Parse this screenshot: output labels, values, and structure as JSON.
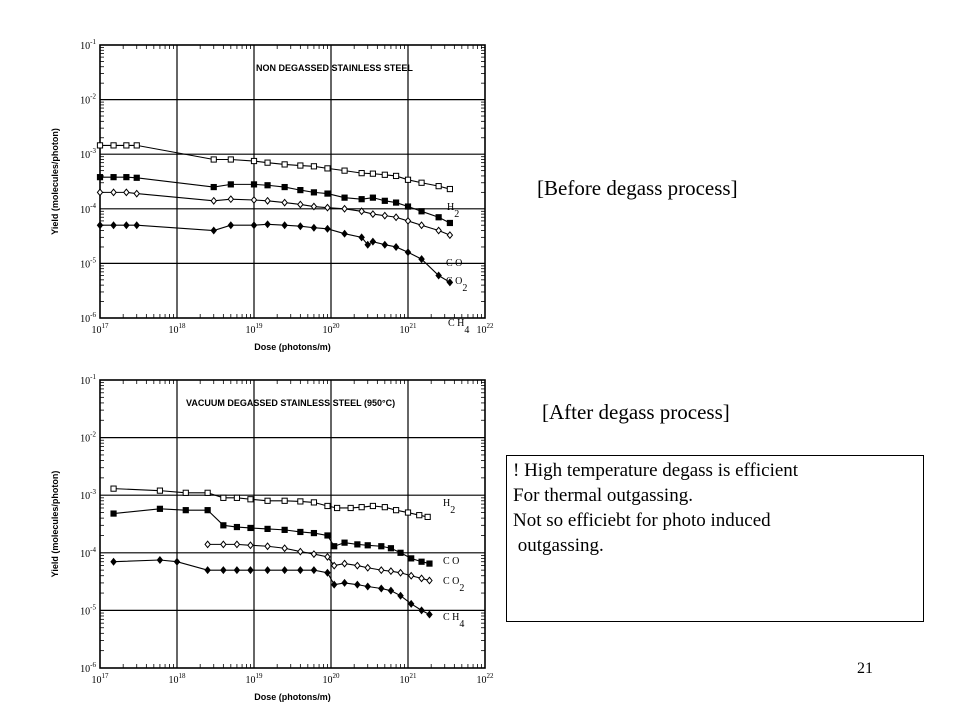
{
  "labels": {
    "before": "[Before degass process]",
    "after": "[After degass process]",
    "page_number": "21"
  },
  "notes": [
    "! High temperature degass is efficient",
    "For thermal outgassing.",
    "Not so efficiebt for photo induced",
    " outgassing."
  ],
  "chart_data": [
    {
      "type": "line",
      "title": "NON DEGASSED STAINLESS STEEL",
      "xlabel": "Dose (photons/m)",
      "ylabel": "Yield (molecules/photon)",
      "xscale": "log",
      "yscale": "log",
      "xlim": [
        1e+17,
        1e+22
      ],
      "ylim": [
        1e-06,
        0.1
      ],
      "x_ticks": [
        "10^17",
        "10^18",
        "10^19",
        "10^20",
        "10^21",
        "10^22"
      ],
      "y_ticks": [
        "10^-1",
        "10^-2",
        "10^-3",
        "10^-4",
        "10^-5",
        "10^-6"
      ],
      "grid": true,
      "series": [
        {
          "name": "H2",
          "marker": "square-open",
          "x": [
            1e+17,
            1.5e+17,
            2.2e+17,
            3e+17,
            3e+18,
            5e+18,
            1e+19,
            1.5e+19,
            2.5e+19,
            4e+19,
            6e+19,
            9e+19,
            1.5e+20,
            2.5e+20,
            3.5e+20,
            5e+20,
            7e+20,
            1e+21,
            1.5e+21,
            2.5e+21,
            3.5e+21
          ],
          "y": [
            0.00145,
            0.00145,
            0.00145,
            0.00145,
            0.0008,
            0.0008,
            0.00075,
            0.0007,
            0.00065,
            0.00062,
            0.0006,
            0.00055,
            0.0005,
            0.00045,
            0.00044,
            0.00042,
            0.0004,
            0.00034,
            0.0003,
            0.00026,
            0.00023
          ]
        },
        {
          "name": "CO",
          "marker": "square-filled",
          "x": [
            1e+17,
            1.5e+17,
            2.2e+17,
            3e+17,
            3e+18,
            5e+18,
            1e+19,
            1.5e+19,
            2.5e+19,
            4e+19,
            6e+19,
            9e+19,
            1.5e+20,
            2.5e+20,
            3.5e+20,
            5e+20,
            7e+20,
            1e+21,
            1.5e+21,
            2.5e+21,
            3.5e+21
          ],
          "y": [
            0.00038,
            0.00038,
            0.00038,
            0.00037,
            0.00025,
            0.00028,
            0.00028,
            0.00027,
            0.00025,
            0.00022,
            0.0002,
            0.00019,
            0.00016,
            0.00015,
            0.00016,
            0.00014,
            0.00013,
            0.00011,
            9e-05,
            7e-05,
            5.5e-05
          ]
        },
        {
          "name": "CO2",
          "marker": "diamond-open",
          "x": [
            1e+17,
            1.5e+17,
            2.2e+17,
            3e+17,
            3e+18,
            5e+18,
            1e+19,
            1.5e+19,
            2.5e+19,
            4e+19,
            6e+19,
            9e+19,
            1.5e+20,
            2.5e+20,
            3.5e+20,
            5e+20,
            7e+20,
            1e+21,
            1.5e+21,
            2.5e+21,
            3.5e+21
          ],
          "y": [
            0.0002,
            0.0002,
            0.0002,
            0.00019,
            0.00014,
            0.00015,
            0.000145,
            0.00014,
            0.00013,
            0.00012,
            0.00011,
            0.000105,
            0.0001,
            9e-05,
            8e-05,
            7.5e-05,
            7e-05,
            6e-05,
            5e-05,
            4e-05,
            3.3e-05
          ]
        },
        {
          "name": "CH4",
          "marker": "diamond-filled",
          "x": [
            1e+17,
            1.5e+17,
            2.2e+17,
            3e+17,
            3e+18,
            5e+18,
            1e+19,
            1.5e+19,
            2.5e+19,
            4e+19,
            6e+19,
            9e+19,
            1.5e+20,
            2.5e+20,
            3e+20,
            3.5e+20,
            5e+20,
            7e+20,
            1e+21,
            1.5e+21,
            2.5e+21,
            3.5e+21
          ],
          "y": [
            5e-05,
            5e-05,
            5e-05,
            5e-05,
            4e-05,
            5e-05,
            5e-05,
            5.2e-05,
            5e-05,
            4.8e-05,
            4.5e-05,
            4.3e-05,
            3.5e-05,
            3e-05,
            2.2e-05,
            2.5e-05,
            2.2e-05,
            2e-05,
            1.6e-05,
            1.2e-05,
            6e-06,
            4.5e-06
          ]
        }
      ]
    },
    {
      "type": "line",
      "title": "VACUUM DEGASSED STAINLESS STEEL (950°C)",
      "xlabel": "Dose (photons/m)",
      "ylabel": "Yield (molecules/photon)",
      "xscale": "log",
      "yscale": "log",
      "xlim": [
        1e+17,
        1e+22
      ],
      "ylim": [
        1e-06,
        0.1
      ],
      "x_ticks": [
        "10^17",
        "10^18",
        "10^19",
        "10^20",
        "10^21",
        "10^22"
      ],
      "y_ticks": [
        "10^-1",
        "10^-2",
        "10^-3",
        "10^-4",
        "10^-5",
        "10^-6"
      ],
      "grid": true,
      "series": [
        {
          "name": "H2",
          "marker": "square-open",
          "x": [
            1.5e+17,
            6e+17,
            1.3e+18,
            2.5e+18,
            4e+18,
            6e+18,
            9e+18,
            1.5e+19,
            2.5e+19,
            4e+19,
            6e+19,
            9e+19,
            1.2e+20,
            1.8e+20,
            2.5e+20,
            3.5e+20,
            5e+20,
            7e+20,
            1e+21,
            1.4e+21,
            1.8e+21
          ],
          "y": [
            0.0013,
            0.0012,
            0.0011,
            0.0011,
            0.0009,
            0.0009,
            0.00085,
            0.0008,
            0.0008,
            0.00078,
            0.00075,
            0.00065,
            0.0006,
            0.0006,
            0.00062,
            0.00065,
            0.00062,
            0.00055,
            0.0005,
            0.00045,
            0.00042
          ]
        },
        {
          "name": "CO",
          "marker": "square-filled",
          "x": [
            1.5e+17,
            6e+17,
            1.3e+18,
            2.5e+18,
            4e+18,
            6e+18,
            9e+18,
            1.5e+19,
            2.5e+19,
            4e+19,
            6e+19,
            9e+19,
            1.1e+20,
            1.5e+20,
            2.2e+20,
            3e+20,
            4.5e+20,
            6e+20,
            8e+20,
            1.1e+21,
            1.5e+21,
            1.9e+21
          ],
          "y": [
            0.00048,
            0.00058,
            0.00055,
            0.00055,
            0.0003,
            0.00028,
            0.00027,
            0.00026,
            0.00025,
            0.00023,
            0.00022,
            0.0002,
            0.00013,
            0.00015,
            0.00014,
            0.000135,
            0.00013,
            0.00012,
            0.0001,
            8e-05,
            7e-05,
            6.5e-05
          ]
        },
        {
          "name": "CO2",
          "marker": "diamond-open",
          "x": [
            2.5e+18,
            4e+18,
            6e+18,
            9e+18,
            1.5e+19,
            2.5e+19,
            4e+19,
            6e+19,
            9e+19,
            1.1e+20,
            1.5e+20,
            2.2e+20,
            3e+20,
            4.5e+20,
            6e+20,
            8e+20,
            1.1e+21,
            1.5e+21,
            1.9e+21
          ],
          "y": [
            0.00014,
            0.00014,
            0.00014,
            0.000135,
            0.00013,
            0.00012,
            0.000105,
            9.5e-05,
            8.5e-05,
            6e-05,
            6.5e-05,
            6e-05,
            5.5e-05,
            5e-05,
            4.8e-05,
            4.5e-05,
            4e-05,
            3.6e-05,
            3.3e-05
          ]
        },
        {
          "name": "CH4",
          "marker": "diamond-filled",
          "x": [
            1.5e+17,
            6e+17,
            1e+18,
            2.5e+18,
            4e+18,
            6e+18,
            9e+18,
            1.5e+19,
            2.5e+19,
            4e+19,
            6e+19,
            9e+19,
            1.1e+20,
            1.5e+20,
            2.2e+20,
            3e+20,
            4.5e+20,
            6e+20,
            8e+20,
            1.1e+21,
            1.5e+21,
            1.9e+21
          ],
          "y": [
            7e-05,
            7.5e-05,
            7e-05,
            5e-05,
            5e-05,
            5e-05,
            5e-05,
            5e-05,
            5e-05,
            5e-05,
            5e-05,
            4.5e-05,
            2.8e-05,
            3e-05,
            2.8e-05,
            2.6e-05,
            2.4e-05,
            2.2e-05,
            1.8e-05,
            1.3e-05,
            1e-05,
            8.5e-06
          ]
        }
      ]
    }
  ]
}
